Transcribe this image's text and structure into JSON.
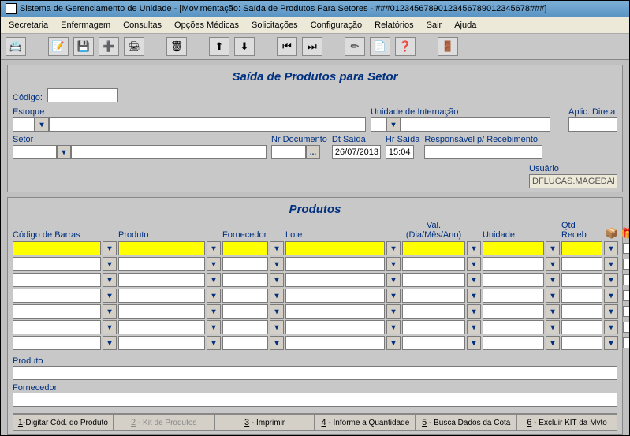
{
  "window": {
    "title": "Sistema de Gerenciamento de Unidade - [Movimentação: Saída de Produtos Para Setores - ###01234567890123456789012345678###]"
  },
  "menu": [
    "Secretaria",
    "Enfermagem",
    "Consultas",
    "Opções Médicas",
    "Solicitações",
    "Configuração",
    "Relatórios",
    "Sair",
    "Ajuda"
  ],
  "toolbar_groups": [
    [
      "📇"
    ],
    [
      "📝",
      "💾",
      "➕",
      "🖨"
    ],
    [
      "🗑"
    ],
    [
      "⬆",
      "⬇"
    ],
    [
      "⏮",
      "⏭"
    ],
    [
      "✏",
      "📄",
      "❓"
    ],
    [
      "🚪"
    ]
  ],
  "header": {
    "title": "Saída de Produtos para Setor",
    "labels": {
      "codigo": "Código:",
      "estoque": "Estoque",
      "unidade": "Unidade de Internação",
      "aplic": "Aplic. Direta",
      "setor": "Setor",
      "nrdoc": "Nr Documento",
      "dtsaida": "Dt Saída",
      "hrsaida": "Hr Saída",
      "resp": "Responsável p/ Recebimento",
      "usuario": "Usuário"
    },
    "values": {
      "codigo": "",
      "estoque_code": "",
      "estoque_name": "",
      "unidade_code": "",
      "unidade_name": "",
      "aplic": "",
      "setor_code": "",
      "setor_name": "",
      "nrdoc": "",
      "dtsaida": "26/07/2013",
      "hrsaida": "15:04",
      "resp": "",
      "usuario": "DFLUCAS.MAGEDANZ",
      "nrdoc_btn": "..."
    }
  },
  "products": {
    "title": "Produtos",
    "columns": {
      "barras": "Código de Barras",
      "produto": "Produto",
      "fornecedor": "Fornecedor",
      "lote": "Lote",
      "validade": "Val.\n(Dia/Mês/Ano)",
      "unidade": "Unidade",
      "qtd": "Qtd Receb"
    },
    "head_icons": [
      "📦",
      "🎁",
      "💰"
    ],
    "row_count": 7,
    "bottom": {
      "produto_lbl": "Produto",
      "fornecedor_lbl": "Fornecedor",
      "produto": "",
      "fornecedor": ""
    }
  },
  "footer": [
    {
      "label": "1-Digitar Cód. do Produto",
      "disabled": false
    },
    {
      "label": "2 - Kit de Produtos",
      "disabled": true
    },
    {
      "label": "3 - Imprimir",
      "disabled": false
    },
    {
      "label": "4 - Informe a Quantidade",
      "disabled": false
    },
    {
      "label": "5 - Busca Dados da Cota",
      "disabled": false
    },
    {
      "label": "6 - Excluir KIT da Mvto",
      "disabled": false
    }
  ],
  "colors": {
    "label": "#003080",
    "highlight": "#ffff00",
    "panel": "#c8c8c8"
  }
}
